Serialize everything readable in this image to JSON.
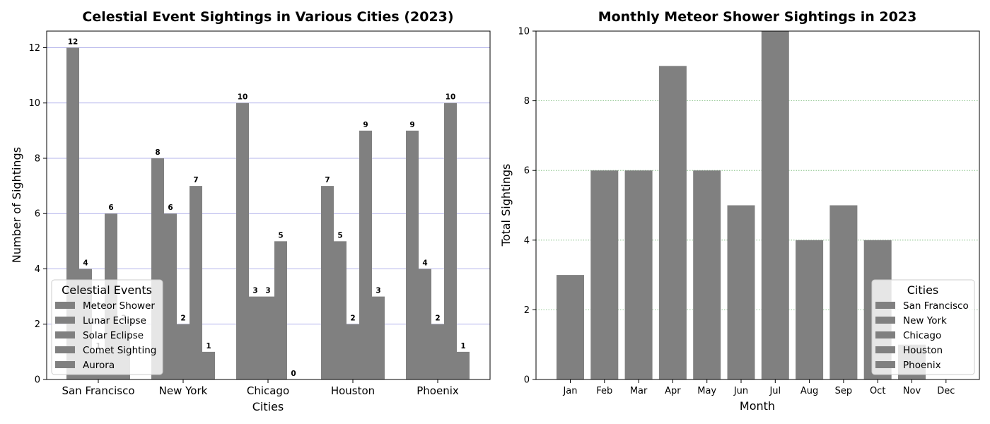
{
  "chart_data": [
    {
      "type": "bar",
      "title": "Celestial Event Sightings in Various Cities (2023)",
      "xlabel": "Cities",
      "ylabel": "Number of Sightings",
      "categories": [
        "San Francisco",
        "New York",
        "Chicago",
        "Houston",
        "Phoenix"
      ],
      "series": [
        {
          "name": "Meteor Shower",
          "values": [
            12,
            8,
            10,
            7,
            9
          ]
        },
        {
          "name": "Lunar Eclipse",
          "values": [
            4,
            6,
            3,
            5,
            4
          ]
        },
        {
          "name": "Solar Eclipse",
          "values": [
            1,
            2,
            3,
            2,
            2
          ]
        },
        {
          "name": "Comet Sighting",
          "values": [
            6,
            7,
            5,
            9,
            10
          ]
        },
        {
          "name": "Aurora",
          "values": [
            2,
            1,
            0,
            3,
            1
          ]
        }
      ],
      "ylim": [
        0,
        12.6
      ],
      "yticks": [
        0,
        2,
        4,
        6,
        8,
        10,
        12
      ],
      "grid": true,
      "grid_color": "#7b7bdc",
      "bar_color": "#808080",
      "legend_title": "Celestial Events",
      "legend_position": "lower-left"
    },
    {
      "type": "bar",
      "title": "Monthly Meteor Shower Sightings in 2023",
      "xlabel": "Month",
      "ylabel": "Total Sightings",
      "categories": [
        "Jan",
        "Feb",
        "Mar",
        "Apr",
        "May",
        "Jun",
        "Jul",
        "Aug",
        "Sep",
        "Oct",
        "Nov",
        "Dec"
      ],
      "values": [
        3,
        6,
        6,
        9,
        6,
        5,
        10,
        4,
        5,
        4,
        1,
        0
      ],
      "ylim": [
        0,
        10
      ],
      "yticks": [
        0,
        2,
        4,
        6,
        8,
        10
      ],
      "grid": true,
      "grid_color": "#5fae5f",
      "bar_color": "#808080",
      "legend_title": "Cities",
      "legend_entries": [
        "San Francisco",
        "New York",
        "Chicago",
        "Houston",
        "Phoenix"
      ],
      "legend_position": "lower-right"
    }
  ]
}
